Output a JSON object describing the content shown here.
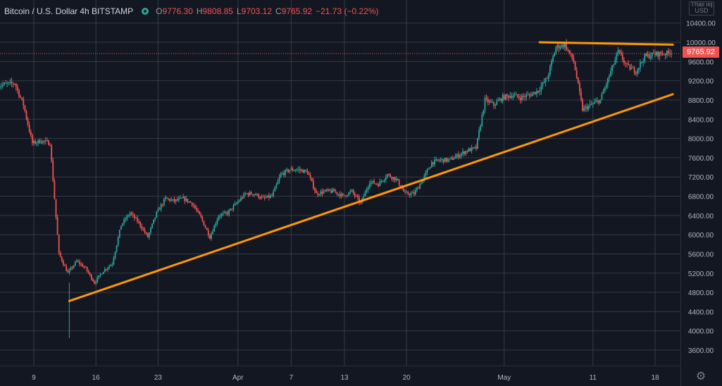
{
  "legend": {
    "title": "Bitcoin / U.S. Dollar  4h  BITSTAMP",
    "o_label": "O",
    "o": "9776.30",
    "h_label": "H",
    "h": "9808.85",
    "l_label": "L",
    "l": "9703.12",
    "c_label": "C",
    "c": "9765.92",
    "change": "−21.73 (−0.22%)"
  },
  "currency": "USD",
  "currency_top": "Thaii iiq",
  "last_price": "9765.92",
  "colors": {
    "background": "#131722",
    "grid": "#363a45",
    "up": "#26a69a",
    "down": "#ef5350",
    "trendline": "#ff9800",
    "text": "#b2b5be"
  },
  "icons": {
    "settings": "gear-icon",
    "visibility": "eye-icon"
  },
  "chart_data": {
    "type": "candlestick",
    "title": "Bitcoin / U.S. Dollar  4h  BITSTAMP",
    "xlabel": "",
    "ylabel": "",
    "ylim": [
      3300,
      10450
    ],
    "y_ticks": [
      3600,
      4000,
      4400,
      4800,
      5200,
      5600,
      6000,
      6400,
      6800,
      7200,
      7600,
      8000,
      8400,
      8800,
      9200,
      9600,
      10000,
      10400
    ],
    "y_tick_labels": [
      "3600.00",
      "4000.00",
      "4400.00",
      "4800.00",
      "5200.00",
      "5600.00",
      "6000.00",
      "6400.00",
      "6800.00",
      "7200.00",
      "7600.00",
      "8000.00",
      "8400.00",
      "8800.00",
      "9200.00",
      "9600.00",
      "10000.00",
      "10400.00"
    ],
    "x_ticks": [
      {
        "label": "9",
        "date": "2020-03-09"
      },
      {
        "label": "16",
        "date": "2020-03-16"
      },
      {
        "label": "23",
        "date": "2020-03-23"
      },
      {
        "label": "Apr",
        "date": "2020-04-01"
      },
      {
        "label": "7",
        "date": "2020-04-07"
      },
      {
        "label": "13",
        "date": "2020-04-13"
      },
      {
        "label": "20",
        "date": "2020-04-20"
      },
      {
        "label": "May",
        "date": "2020-05-01"
      },
      {
        "label": "11",
        "date": "2020-05-11"
      },
      {
        "label": "18",
        "date": "2020-05-18"
      }
    ],
    "x_range": [
      "2020-03-05",
      "2020-05-21"
    ],
    "grid": true,
    "last_price": 9765.92,
    "price_path": [
      [
        "2020-03-05",
        9100
      ],
      [
        "2020-03-07",
        9150
      ],
      [
        "2020-03-08",
        8700
      ],
      [
        "2020-03-09",
        7900
      ],
      [
        "2020-03-10",
        7950
      ],
      [
        "2020-03-11",
        7900
      ],
      [
        "2020-03-12",
        5600
      ],
      [
        "2020-03-13",
        5200
      ],
      [
        "2020-03-14",
        5450
      ],
      [
        "2020-03-15",
        5300
      ],
      [
        "2020-03-16",
        5000
      ],
      [
        "2020-03-17",
        5250
      ],
      [
        "2020-03-18",
        5400
      ],
      [
        "2020-03-19",
        6200
      ],
      [
        "2020-03-20",
        6450
      ],
      [
        "2020-03-21",
        6250
      ],
      [
        "2020-03-22",
        5950
      ],
      [
        "2020-03-23",
        6450
      ],
      [
        "2020-03-24",
        6750
      ],
      [
        "2020-03-25",
        6700
      ],
      [
        "2020-03-26",
        6750
      ],
      [
        "2020-03-27",
        6650
      ],
      [
        "2020-03-28",
        6350
      ],
      [
        "2020-03-29",
        5950
      ],
      [
        "2020-03-30",
        6400
      ],
      [
        "2020-03-31",
        6450
      ],
      [
        "2020-04-01",
        6650
      ],
      [
        "2020-04-02",
        6850
      ],
      [
        "2020-04-03",
        6850
      ],
      [
        "2020-04-04",
        6750
      ],
      [
        "2020-04-05",
        6800
      ],
      [
        "2020-04-06",
        7250
      ],
      [
        "2020-04-07",
        7350
      ],
      [
        "2020-04-08",
        7350
      ],
      [
        "2020-04-09",
        7300
      ],
      [
        "2020-04-10",
        6850
      ],
      [
        "2020-04-11",
        6900
      ],
      [
        "2020-04-12",
        6900
      ],
      [
        "2020-04-13",
        6800
      ],
      [
        "2020-04-14",
        6900
      ],
      [
        "2020-04-15",
        6650
      ],
      [
        "2020-04-16",
        7100
      ],
      [
        "2020-04-17",
        7050
      ],
      [
        "2020-04-18",
        7250
      ],
      [
        "2020-04-19",
        7150
      ],
      [
        "2020-04-20",
        6850
      ],
      [
        "2020-04-21",
        6850
      ],
      [
        "2020-04-22",
        7150
      ],
      [
        "2020-04-23",
        7500
      ],
      [
        "2020-04-24",
        7550
      ],
      [
        "2020-04-25",
        7550
      ],
      [
        "2020-04-26",
        7650
      ],
      [
        "2020-04-27",
        7750
      ],
      [
        "2020-04-28",
        7800
      ],
      [
        "2020-04-29",
        8800
      ],
      [
        "2020-04-30",
        8700
      ],
      [
        "2020-05-01",
        8850
      ],
      [
        "2020-05-02",
        8900
      ],
      [
        "2020-05-03",
        8850
      ],
      [
        "2020-05-04",
        8900
      ],
      [
        "2020-05-05",
        9000
      ],
      [
        "2020-05-06",
        9250
      ],
      [
        "2020-05-07",
        9900
      ],
      [
        "2020-05-08",
        9950
      ],
      [
        "2020-05-09",
        9600
      ],
      [
        "2020-05-10",
        8600
      ],
      [
        "2020-05-11",
        8700
      ],
      [
        "2020-05-12",
        8800
      ],
      [
        "2020-05-13",
        9300
      ],
      [
        "2020-05-14",
        9800
      ],
      [
        "2020-05-15",
        9500
      ],
      [
        "2020-05-16",
        9400
      ],
      [
        "2020-05-17",
        9700
      ],
      [
        "2020-05-18",
        9750
      ],
      [
        "2020-05-19",
        9765.92
      ]
    ],
    "annotations": [
      {
        "type": "trendline",
        "name": "ascending-support",
        "from": [
          "2020-03-13",
          4620
        ],
        "to": [
          "2020-05-20",
          8920
        ]
      },
      {
        "type": "trendline",
        "name": "horizontal-resistance",
        "from": [
          "2020-05-05",
          10000
        ],
        "to": [
          "2020-05-20",
          9950
        ]
      }
    ]
  }
}
